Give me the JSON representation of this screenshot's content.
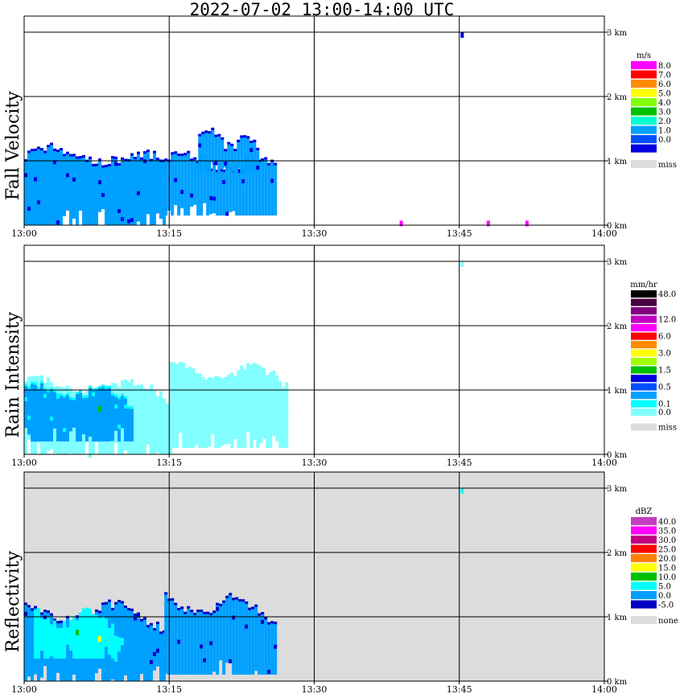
{
  "title": "2022-07-02  13:00-14:00 UTC",
  "x_ticks": [
    "13:00",
    "13:15",
    "13:30",
    "13:45",
    "14:00"
  ],
  "y_ticks": [
    "0 km",
    "1 km",
    "2 km",
    "3 km"
  ],
  "chart_data": [
    {
      "type": "heatmap",
      "ylabel": "Fall Velocity",
      "unit": "m/s",
      "background": "#ffffff",
      "legend": [
        {
          "label": "8.0",
          "color": "#ff00ff"
        },
        {
          "label": "7.0",
          "color": "#ff0000"
        },
        {
          "label": "6.0",
          "color": "#ff8c00"
        },
        {
          "label": "5.0",
          "color": "#ffff00"
        },
        {
          "label": "4.0",
          "color": "#80ff00"
        },
        {
          "label": "3.0",
          "color": "#00c000"
        },
        {
          "label": "2.0",
          "color": "#00ffd0"
        },
        {
          "label": "1.0",
          "color": "#00a0ff"
        },
        {
          "label": "0.0",
          "color": "#0050ff"
        },
        {
          "label": "",
          "color": "#0000e0"
        },
        {
          "label": "miss",
          "color": "#dcdcdc"
        }
      ],
      "echoes": [
        {
          "t0": 0,
          "t1": 14.5,
          "h0": 0,
          "h1": 1.1,
          "color": "#00a0ff",
          "edge": "#0000e0"
        },
        {
          "t0": 14.5,
          "t1": 26,
          "h0": 0.15,
          "h1": 1.0,
          "color": "#00a0ff",
          "edge": "#0000e0"
        },
        {
          "t0": 18,
          "t1": 24,
          "h0": 0.8,
          "h1": 1.35,
          "color": "#00a0ff",
          "edge": "#0000e0"
        }
      ],
      "specks": [
        {
          "t": 45.3,
          "h": 2.95,
          "color": "#0000e0"
        },
        {
          "t": 39,
          "h": 0.02,
          "color": "#ff00ff"
        },
        {
          "t": 48,
          "h": 0.02,
          "color": "#ff00ff"
        },
        {
          "t": 52,
          "h": 0.02,
          "color": "#ff00ff"
        }
      ]
    },
    {
      "type": "heatmap",
      "ylabel": "Rain Intensity",
      "unit": "mm/hr",
      "background": "#ffffff",
      "legend": [
        {
          "label": "48.0",
          "color": "#000000"
        },
        {
          "label": "",
          "color": "#4a0040"
        },
        {
          "label": "",
          "color": "#800080"
        },
        {
          "label": "12.0",
          "color": "#c000c0"
        },
        {
          "label": "",
          "color": "#ff00ff"
        },
        {
          "label": "6.0",
          "color": "#ff0000"
        },
        {
          "label": "",
          "color": "#ff8c00"
        },
        {
          "label": "3.0",
          "color": "#ffff00"
        },
        {
          "label": "",
          "color": "#a0ff00"
        },
        {
          "label": "1.5",
          "color": "#00c000"
        },
        {
          "label": "",
          "color": "#0000e0"
        },
        {
          "label": "0.5",
          "color": "#0050ff"
        },
        {
          "label": "",
          "color": "#00a0ff"
        },
        {
          "label": "0.1",
          "color": "#00ffff"
        },
        {
          "label": "0.0",
          "color": "#80ffff"
        },
        {
          "label": "miss",
          "color": "#dcdcdc"
        }
      ],
      "echoes": [
        {
          "t0": 0,
          "t1": 15,
          "h0": 0,
          "h1": 1.05,
          "color": "#80ffff",
          "edge": "#80ffff"
        },
        {
          "t0": 0,
          "t1": 11,
          "h0": 0.2,
          "h1": 1.0,
          "color": "#00a0ff",
          "edge": "#00ffff"
        },
        {
          "t0": 15,
          "t1": 27,
          "h0": 0.1,
          "h1": 1.3,
          "color": "#80ffff",
          "edge": "#80ffff"
        }
      ],
      "specks": [
        {
          "t": 45.3,
          "h": 2.95,
          "color": "#80ffff"
        },
        {
          "t": 7.8,
          "h": 0.7,
          "color": "#00c000"
        }
      ]
    },
    {
      "type": "heatmap",
      "ylabel": "Reflectivity",
      "unit": "dBZ",
      "background": "#dcdcdc",
      "legend": [
        {
          "label": "40.0",
          "color": "#c040c0"
        },
        {
          "label": "35.0",
          "color": "#ff00ff"
        },
        {
          "label": "30.0",
          "color": "#c00080"
        },
        {
          "label": "25.0",
          "color": "#ff0000"
        },
        {
          "label": "20.0",
          "color": "#ff8000"
        },
        {
          "label": "15.0",
          "color": "#ffff00"
        },
        {
          "label": "10.0",
          "color": "#00c000"
        },
        {
          "label": "5.0",
          "color": "#00ffff"
        },
        {
          "label": "0.0",
          "color": "#00a0ff"
        },
        {
          "label": "-5.0",
          "color": "#0000c0"
        },
        {
          "label": "none",
          "color": "#dcdcdc"
        }
      ],
      "echoes": [
        {
          "t0": 0,
          "t1": 14.5,
          "h0": 0,
          "h1": 1.1,
          "color": "#00a0ff",
          "edge": "#0000c0"
        },
        {
          "t0": 1,
          "t1": 10,
          "h0": 0.35,
          "h1": 1.0,
          "color": "#00ffff",
          "edge": "#00ffff"
        },
        {
          "t0": 14.5,
          "t1": 26,
          "h0": 0.1,
          "h1": 1.2,
          "color": "#00a0ff",
          "edge": "#0000c0"
        }
      ],
      "specks": [
        {
          "t": 45.3,
          "h": 2.95,
          "color": "#00ffff"
        },
        {
          "t": 7.8,
          "h": 0.65,
          "color": "#ffff00"
        },
        {
          "t": 5.5,
          "h": 0.75,
          "color": "#00c000"
        }
      ]
    }
  ]
}
